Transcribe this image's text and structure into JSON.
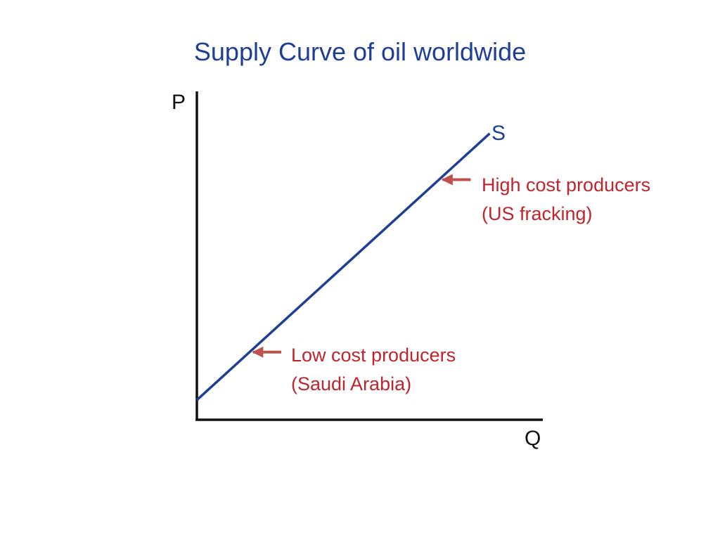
{
  "chart_data": {
    "type": "line",
    "title": "Supply Curve of oil worldwide",
    "xlabel": "Q",
    "ylabel": "P",
    "series": [
      {
        "name": "S",
        "x": [
          0.0,
          0.85
        ],
        "y": [
          0.06,
          0.87
        ]
      }
    ],
    "grid": false,
    "annotations": [
      {
        "lines": [
          "High cost producers",
          "(US fracking)"
        ],
        "points_to_x": 0.705
      },
      {
        "lines": [
          "Low cost producers",
          "(Saudi Arabia)"
        ],
        "points_to_x": 0.155
      }
    ]
  },
  "colors": {
    "title": "#1f3f95",
    "curve": "#1f3f95",
    "axes": "#111111",
    "annotation_text": "#c0242c",
    "annotation_arrow": "#c0504d"
  }
}
